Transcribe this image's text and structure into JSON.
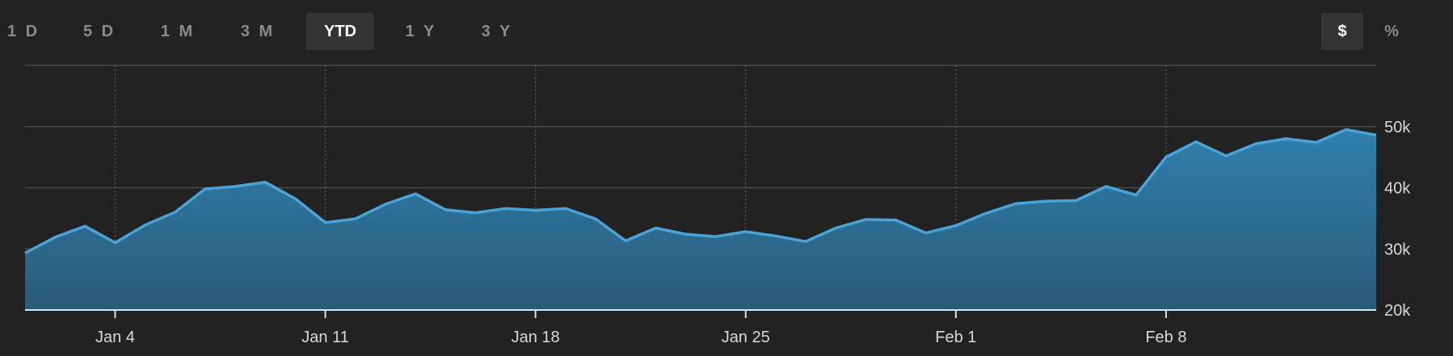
{
  "toolbar": {
    "ranges": [
      {
        "label": "1 D",
        "active": false
      },
      {
        "label": "5 D",
        "active": false
      },
      {
        "label": "1 M",
        "active": false
      },
      {
        "label": "3 M",
        "active": false
      },
      {
        "label": "YTD",
        "active": true
      },
      {
        "label": "1 Y",
        "active": false
      },
      {
        "label": "3 Y",
        "active": false
      }
    ],
    "units": [
      {
        "label": "$",
        "active": true
      },
      {
        "label": "%",
        "active": false
      }
    ]
  },
  "colors": {
    "background": "#222222",
    "line": "#4aa3d8",
    "area_top": "#2f7fad",
    "area_bottom": "#2a5a78",
    "grid": "#4a4a4a"
  },
  "chart_data": {
    "type": "area",
    "x_tick_labels": [
      "Jan 4",
      "Jan 11",
      "Jan 18",
      "Jan 25",
      "Feb 1",
      "Feb 8"
    ],
    "y_tick_labels": [
      "20k",
      "30k",
      "40k",
      "50k"
    ],
    "ylim": [
      20000,
      60000
    ],
    "grid": true,
    "x": [
      "2021-01-01",
      "2021-01-02",
      "2021-01-03",
      "2021-01-04",
      "2021-01-05",
      "2021-01-06",
      "2021-01-07",
      "2021-01-08",
      "2021-01-09",
      "2021-01-10",
      "2021-01-11",
      "2021-01-12",
      "2021-01-13",
      "2021-01-14",
      "2021-01-15",
      "2021-01-16",
      "2021-01-17",
      "2021-01-18",
      "2021-01-19",
      "2021-01-20",
      "2021-01-21",
      "2021-01-22",
      "2021-01-23",
      "2021-01-24",
      "2021-01-25",
      "2021-01-26",
      "2021-01-27",
      "2021-01-28",
      "2021-01-29",
      "2021-01-30",
      "2021-01-31",
      "2021-02-01",
      "2021-02-02",
      "2021-02-03",
      "2021-02-04",
      "2021-02-05",
      "2021-02-06",
      "2021-02-07",
      "2021-02-08",
      "2021-02-09",
      "2021-02-10",
      "2021-02-11",
      "2021-02-12",
      "2021-02-13",
      "2021-02-14",
      "2021-02-15"
    ],
    "values": [
      29300,
      31900,
      33700,
      31000,
      33900,
      36000,
      39800,
      40200,
      40900,
      38200,
      34300,
      34900,
      37300,
      39000,
      36400,
      35900,
      36600,
      36300,
      36600,
      34900,
      31300,
      33400,
      32400,
      32000,
      32800,
      32100,
      31200,
      33400,
      34800,
      34700,
      32600,
      33800,
      35800,
      37400,
      37800,
      37900,
      40200,
      38800,
      45000,
      47500,
      45200,
      47200,
      48000,
      47400,
      49500,
      48600
    ]
  }
}
